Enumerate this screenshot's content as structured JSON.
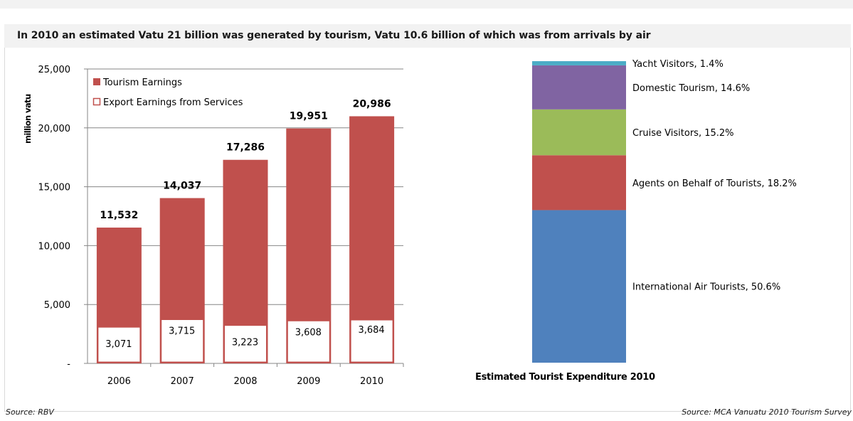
{
  "title": "In 2010 an estimated Vatu 21 billion was generated by tourism, Vatu 10.6 billion of which was from arrivals by air",
  "source_left": "Source: RBV",
  "source_right": "Source: MCA Vanuatu 2010 Tourism Survey",
  "colors": {
    "tourism": "#c0504d",
    "export_fill": "#ffffff",
    "export_border": "#c0504d",
    "air": "#4f81bd",
    "agents": "#c0504d",
    "cruise": "#9bbb59",
    "domestic": "#8064a2",
    "yacht": "#4bacc6"
  },
  "chart_data": [
    {
      "type": "bar",
      "ylabel": "million vatu",
      "ylim": [
        0,
        25000
      ],
      "yticks": [
        0,
        5000,
        10000,
        15000,
        20000,
        25000
      ],
      "ytick_labels": [
        "-",
        "5,000",
        "10,000",
        "15,000",
        "20,000",
        "25,000"
      ],
      "categories": [
        "2006",
        "2007",
        "2008",
        "2009",
        "2010"
      ],
      "legend_position": "top-left",
      "grid": "horizontal",
      "series": [
        {
          "name": "Tourism Earnings",
          "values": [
            11532,
            14037,
            17286,
            19951,
            20986
          ],
          "labels": [
            "11,532",
            "14,037",
            "17,286",
            "19,951",
            "20,986"
          ]
        },
        {
          "name": "Export Earnings from Services",
          "values": [
            3071,
            3715,
            3223,
            3608,
            3684
          ],
          "labels": [
            "3,071",
            "3,715",
            "3,223",
            "3,608",
            "3,684"
          ]
        }
      ]
    },
    {
      "type": "bar",
      "stacked": true,
      "xlabel": "Estimated Tourist Expenditure  2010",
      "segments": [
        {
          "name": "International  Air Tourists",
          "value": 50.6,
          "label": "International  Air Tourists, 50.6%",
          "color": "#4f81bd"
        },
        {
          "name": "Agents on Behalf of Tourists",
          "value": 18.2,
          "label": "Agents on Behalf of Tourists, 18.2%",
          "color": "#c0504d"
        },
        {
          "name": "Cruise Visitors",
          "value": 15.2,
          "label": "Cruise Visitors, 15.2%",
          "color": "#9bbb59"
        },
        {
          "name": "Domestic Tourism",
          "value": 14.6,
          "label": "Domestic Tourism, 14.6%",
          "color": "#8064a2"
        },
        {
          "name": "Yacht Visitors",
          "value": 1.4,
          "label": "Yacht Visitors, 1.4%",
          "color": "#4bacc6"
        }
      ]
    }
  ]
}
